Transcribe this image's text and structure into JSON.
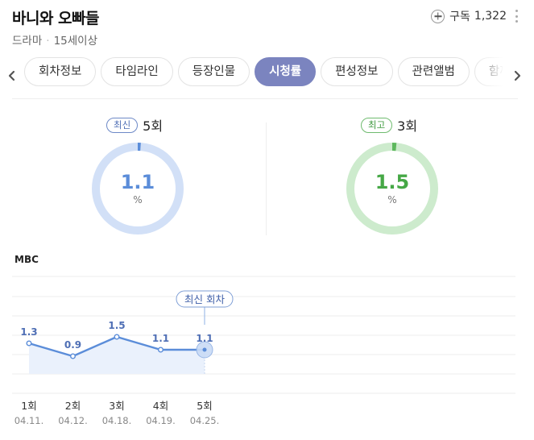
{
  "program": {
    "title": "바니와 오빠들",
    "genre": "드라마",
    "rating": "15세이상"
  },
  "subscribe": {
    "label": "구독",
    "count": "1,322"
  },
  "tabs": [
    "회차정보",
    "타임라인",
    "등장인물",
    "시청률",
    "편성정보",
    "관련앨범",
    "함께 볼만한"
  ],
  "active_tab": "시청률",
  "latest": {
    "badge": "최신",
    "episode": "5회",
    "value": "1.1",
    "unit": "%",
    "percent": 1.1,
    "color": "#5b8dd9",
    "track_color": "#d2e0f7"
  },
  "best": {
    "badge": "최고",
    "episode": "3회",
    "value": "1.5",
    "unit": "%",
    "percent": 1.5,
    "color": "#5db85d",
    "track_color": "#cdebcd"
  },
  "chart_section": {
    "channel": "MBC",
    "callout": "최신 회차"
  },
  "chart_data": {
    "type": "line",
    "categories": [
      "1회",
      "2회",
      "3회",
      "4회",
      "5회"
    ],
    "dates": [
      "04.11.",
      "04.12.",
      "04.18.",
      "04.19.",
      "04.25."
    ],
    "values": [
      1.3,
      0.9,
      1.5,
      1.1,
      1.1
    ],
    "labels": [
      "1.3",
      "0.9",
      "1.5",
      "1.1",
      "1.1"
    ],
    "highlight_index": 4,
    "line_color": "#5b8dd9",
    "fill_color": "#eaf1fc",
    "grid": true
  }
}
